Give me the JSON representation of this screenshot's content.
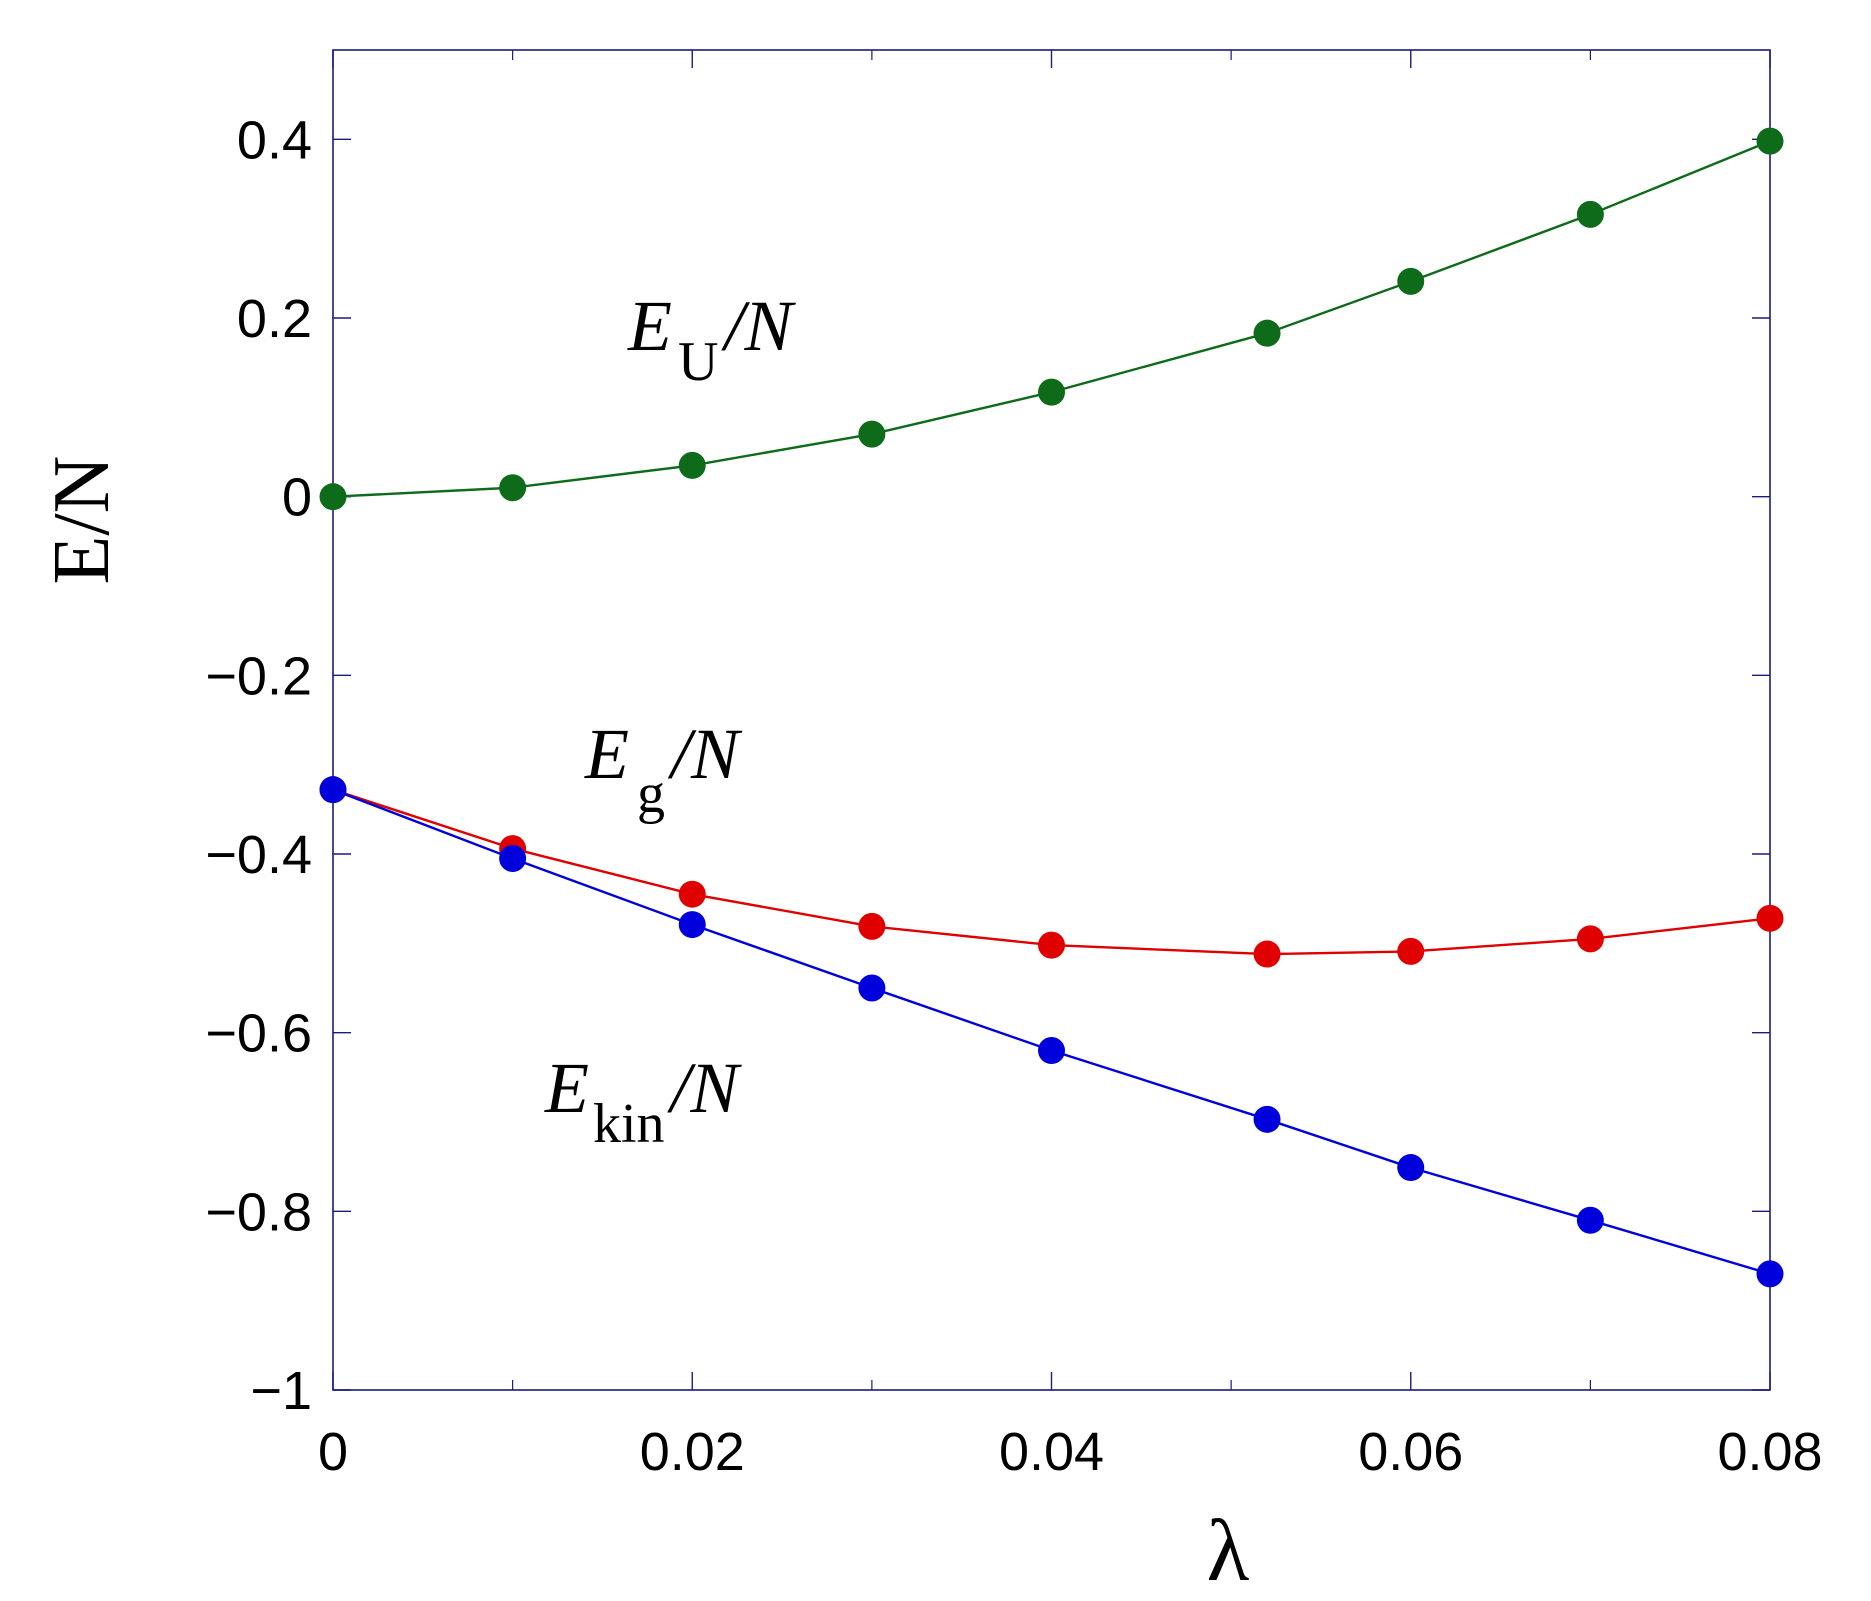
{
  "chart_data": {
    "type": "line",
    "xlabel": "λ",
    "ylabel": "E/N",
    "xlim": [
      0,
      0.08
    ],
    "ylim": [
      -1,
      0.5
    ],
    "xticks": [
      0,
      0.02,
      0.04,
      0.06,
      0.08
    ],
    "xtick_labels": [
      "0",
      "0.02",
      "0.04",
      "0.06",
      "0.08"
    ],
    "xminor": [
      0.01,
      0.03,
      0.05,
      0.07
    ],
    "yticks": [
      -1,
      -0.8,
      -0.6,
      -0.4,
      -0.2,
      0,
      0.2,
      0.4
    ],
    "ytick_labels": [
      "−1",
      "−0.8",
      "−0.6",
      "−0.4",
      "−0.2",
      "0",
      "0.2",
      "0.4"
    ],
    "grid": false,
    "series": [
      {
        "label_main": "E",
        "label_sub": "U",
        "label_tail": "/N",
        "color": "#0e6b1a",
        "x": [
          0,
          0.01,
          0.02,
          0.03,
          0.04,
          0.052,
          0.06,
          0.07,
          0.08
        ],
        "y": [
          0.0,
          0.01,
          0.035,
          0.07,
          0.117,
          0.183,
          0.241,
          0.316,
          0.398
        ]
      },
      {
        "label_main": "E",
        "label_sub": "g",
        "label_tail": "/N",
        "color": "#e00000",
        "x": [
          0,
          0.01,
          0.02,
          0.03,
          0.04,
          0.052,
          0.06,
          0.07,
          0.08
        ],
        "y": [
          -0.328,
          -0.394,
          -0.445,
          -0.481,
          -0.502,
          -0.512,
          -0.509,
          -0.495,
          -0.472
        ]
      },
      {
        "label_main": "E",
        "label_sub": "kin",
        "label_tail": "/N",
        "color": "#0000dd",
        "x": [
          0,
          0.01,
          0.02,
          0.03,
          0.04,
          0.052,
          0.06,
          0.07,
          0.08
        ],
        "y": [
          -0.328,
          -0.405,
          -0.479,
          -0.55,
          -0.62,
          -0.697,
          -0.751,
          -0.81,
          -0.87
        ]
      }
    ]
  }
}
